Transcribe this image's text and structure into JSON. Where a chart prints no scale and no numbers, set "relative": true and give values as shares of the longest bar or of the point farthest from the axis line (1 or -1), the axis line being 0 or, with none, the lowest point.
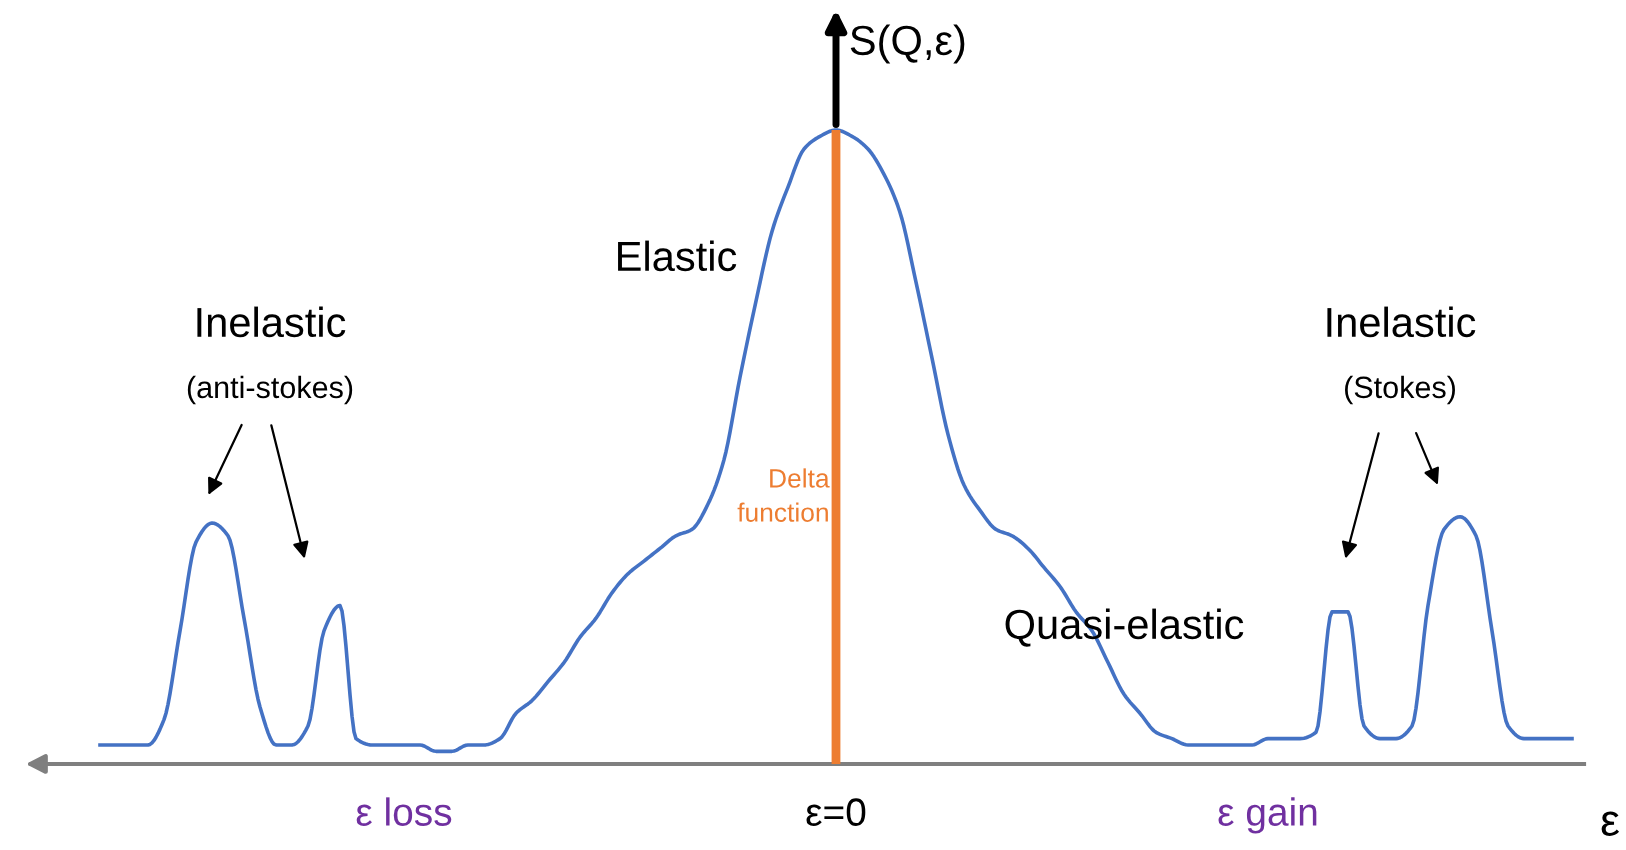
{
  "chart_data": {
    "type": "line",
    "relative": true,
    "xlabel": "ε",
    "ylabel": "S(Q,ε)",
    "legend": false,
    "grid": false,
    "categories": [
      null,
      null,
      null,
      null,
      null,
      null,
      null,
      null,
      null,
      null,
      null,
      null,
      null,
      null,
      null,
      null,
      null,
      null,
      null,
      "ε loss",
      null,
      null,
      null,
      null,
      null,
      null,
      null,
      null,
      null,
      null,
      null,
      null,
      null,
      null,
      null,
      null,
      null,
      null,
      null,
      null,
      null,
      null,
      null,
      null,
      null,
      null,
      "ε=0",
      null,
      null,
      null,
      null,
      null,
      null,
      null,
      null,
      null,
      null,
      null,
      null,
      null,
      null,
      null,
      null,
      null,
      null,
      null,
      null,
      null,
      null,
      null,
      null,
      null,
      null,
      "ε gain",
      null,
      null,
      null,
      null,
      null,
      null,
      null,
      null,
      null,
      null,
      null,
      null,
      null,
      null,
      null,
      null,
      null,
      null,
      null
    ],
    "series": [
      {
        "color": "#4472c4",
        "values": [
          0.03,
          0.03,
          0.03,
          0.03,
          0.07,
          0.21,
          0.35,
          0.38,
          0.36,
          0.23,
          0.09,
          0.03,
          0.03,
          0.06,
          0.21,
          0.25,
          0.04,
          0.03,
          0.03,
          0.03,
          0.03,
          0.02,
          0.02,
          0.03,
          0.03,
          0.04,
          0.08,
          0.1,
          0.13,
          0.16,
          0.2,
          0.23,
          0.27,
          0.3,
          0.32,
          0.34,
          0.36,
          0.37,
          0.41,
          0.48,
          0.61,
          0.73,
          0.84,
          0.91,
          0.97,
          0.99,
          1.0,
          0.99,
          0.97,
          0.93,
          0.87,
          0.76,
          0.64,
          0.52,
          0.44,
          0.4,
          0.37,
          0.36,
          0.34,
          0.31,
          0.28,
          0.24,
          0.21,
          0.16,
          0.11,
          0.08,
          0.05,
          0.04,
          0.03,
          0.03,
          0.03,
          0.03,
          0.03,
          0.04,
          0.04,
          0.04,
          0.05,
          0.24,
          0.24,
          0.06,
          0.04,
          0.04,
          0.06,
          0.25,
          0.37,
          0.39,
          0.36,
          0.21,
          0.06,
          0.04,
          0.04,
          0.04,
          0.04
        ]
      },
      {
        "type": "bar",
        "name": "Delta function",
        "color": "#ed7d31",
        "values": [
          null,
          null,
          null,
          null,
          null,
          null,
          null,
          null,
          null,
          null,
          null,
          null,
          null,
          null,
          null,
          null,
          null,
          null,
          null,
          null,
          null,
          null,
          null,
          null,
          null,
          null,
          null,
          null,
          null,
          null,
          null,
          null,
          null,
          null,
          null,
          null,
          null,
          null,
          null,
          null,
          null,
          null,
          null,
          null,
          null,
          null,
          1.0,
          null,
          null,
          null,
          null,
          null,
          null,
          null,
          null,
          null,
          null,
          null,
          null,
          null,
          null,
          null,
          null,
          null,
          null,
          null,
          null,
          null,
          null,
          null,
          null,
          null,
          null,
          null,
          null,
          null,
          null,
          null,
          null,
          null,
          null,
          null,
          null,
          null,
          null,
          null,
          null,
          null,
          null,
          null,
          null,
          null,
          null
        ]
      }
    ],
    "annotations": [
      "Inelastic",
      "(anti-stokes)",
      "Elastic",
      "Inelastic",
      "(Stokes)",
      "Quasi-elastic"
    ]
  }
}
